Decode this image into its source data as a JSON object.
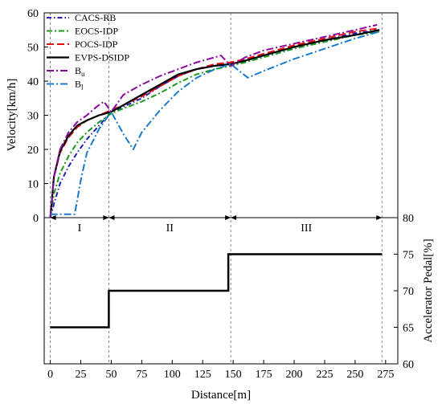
{
  "chart_data": {
    "type": "line",
    "x_axis": {
      "label": "Distance[m]",
      "range": [
        -5,
        285
      ],
      "ticks": [
        0,
        25,
        50,
        75,
        100,
        125,
        150,
        175,
        200,
        225,
        250,
        275
      ]
    },
    "top_panel": {
      "ylabel": "Velocity[km/h]",
      "ylim": [
        0,
        60
      ],
      "yticks": [
        0,
        10,
        20,
        30,
        40,
        50,
        60
      ],
      "legend_position": "top-left",
      "series": [
        {
          "name": "CACS-RB",
          "color": "#1f1fb4",
          "dash": "6,3,1.5,3",
          "x": [
            0,
            3,
            8,
            15,
            22,
            30,
            40,
            50,
            60,
            75,
            90,
            105,
            120,
            135,
            148,
            160,
            175,
            200,
            225,
            250,
            270
          ],
          "y": [
            0,
            4,
            10,
            15,
            19,
            23,
            27,
            31,
            32.5,
            35,
            38.5,
            41.5,
            43.5,
            44.5,
            45,
            46,
            47.5,
            50,
            52,
            54,
            55
          ]
        },
        {
          "name": "EOCS-IDP",
          "color": "#1a9a1a",
          "dash": "7,3,2,3",
          "x": [
            0,
            3,
            8,
            15,
            22,
            30,
            40,
            50,
            60,
            75,
            90,
            105,
            120,
            135,
            148,
            160,
            175,
            200,
            225,
            250,
            270
          ],
          "y": [
            0,
            7,
            13,
            18,
            22,
            25,
            28,
            30.5,
            32,
            34,
            36.5,
            39.5,
            42,
            43.5,
            44.5,
            45.5,
            47,
            49.5,
            51.5,
            53.5,
            54.5
          ]
        },
        {
          "name": "POCS-IDP",
          "color": "#e01010",
          "dash": "9,4",
          "x": [
            0,
            3,
            8,
            15,
            22,
            30,
            40,
            50,
            60,
            75,
            90,
            105,
            120,
            135,
            148,
            160,
            175,
            200,
            225,
            250,
            270
          ],
          "y": [
            0,
            12,
            19,
            23.5,
            26.5,
            28.5,
            30,
            31.5,
            33,
            35.5,
            38.5,
            41.5,
            43.5,
            45,
            45.5,
            46.5,
            48,
            50.5,
            52.5,
            54.5,
            55.5
          ]
        },
        {
          "name": "EVPS-DSIDP",
          "color": "#000000",
          "dash": "",
          "x": [
            0,
            3,
            8,
            15,
            22,
            30,
            40,
            50,
            60,
            75,
            90,
            105,
            120,
            135,
            148,
            160,
            175,
            200,
            225,
            250,
            270
          ],
          "y": [
            0,
            12,
            19.5,
            24,
            27,
            28.5,
            30,
            31,
            33,
            36,
            39,
            42,
            43.5,
            44.5,
            45,
            46,
            47.5,
            50,
            52,
            53.5,
            55
          ]
        },
        {
          "name": "B",
          "name_sub": "u",
          "color": "#8b0a9e",
          "dash": "9,3,2,3",
          "x": [
            0,
            3,
            8,
            15,
            22,
            30,
            38,
            44,
            50,
            60,
            75,
            90,
            105,
            120,
            135,
            140,
            148,
            160,
            175,
            200,
            225,
            250,
            268
          ],
          "y": [
            0,
            12,
            20,
            25,
            28,
            30,
            32.5,
            34,
            31,
            36,
            39,
            41.5,
            43.5,
            45.5,
            47,
            47.5,
            44.5,
            47,
            49,
            51,
            53,
            55,
            56.5
          ]
        },
        {
          "name": "B",
          "name_sub": "l",
          "color": "#1a7acb",
          "dash": "9,3,2,3",
          "x": [
            0,
            5,
            10,
            15,
            20,
            22,
            25,
            30,
            40,
            50,
            60,
            68,
            75,
            90,
            105,
            120,
            135,
            148,
            155,
            162,
            175,
            200,
            225,
            250,
            270
          ],
          "y": [
            1,
            1,
            1,
            1,
            1,
            5,
            11,
            19,
            26,
            31,
            24.5,
            20,
            25,
            31.5,
            37,
            41,
            43.5,
            45,
            43,
            41,
            43,
            46.5,
            49.5,
            52.5,
            54.5
          ]
        }
      ]
    },
    "bottom_panel": {
      "ylabel": "Accelerator Pedal[%]",
      "ylim": [
        60,
        80
      ],
      "yticks": [
        60,
        65,
        70,
        75,
        80
      ],
      "series": [
        {
          "name": "",
          "color": "#000000",
          "x": [
            0,
            48,
            48,
            146,
            146,
            272
          ],
          "y": [
            65,
            65,
            70,
            70,
            75,
            75
          ]
        }
      ]
    },
    "phases": [
      {
        "label": "I",
        "x_start": 0,
        "x_end": 48
      },
      {
        "label": "II",
        "x_start": 48,
        "x_end": 148
      },
      {
        "label": "III",
        "x_start": 148,
        "x_end": 272
      }
    ],
    "phase_divider_x": [
      0,
      48,
      148,
      272
    ]
  }
}
